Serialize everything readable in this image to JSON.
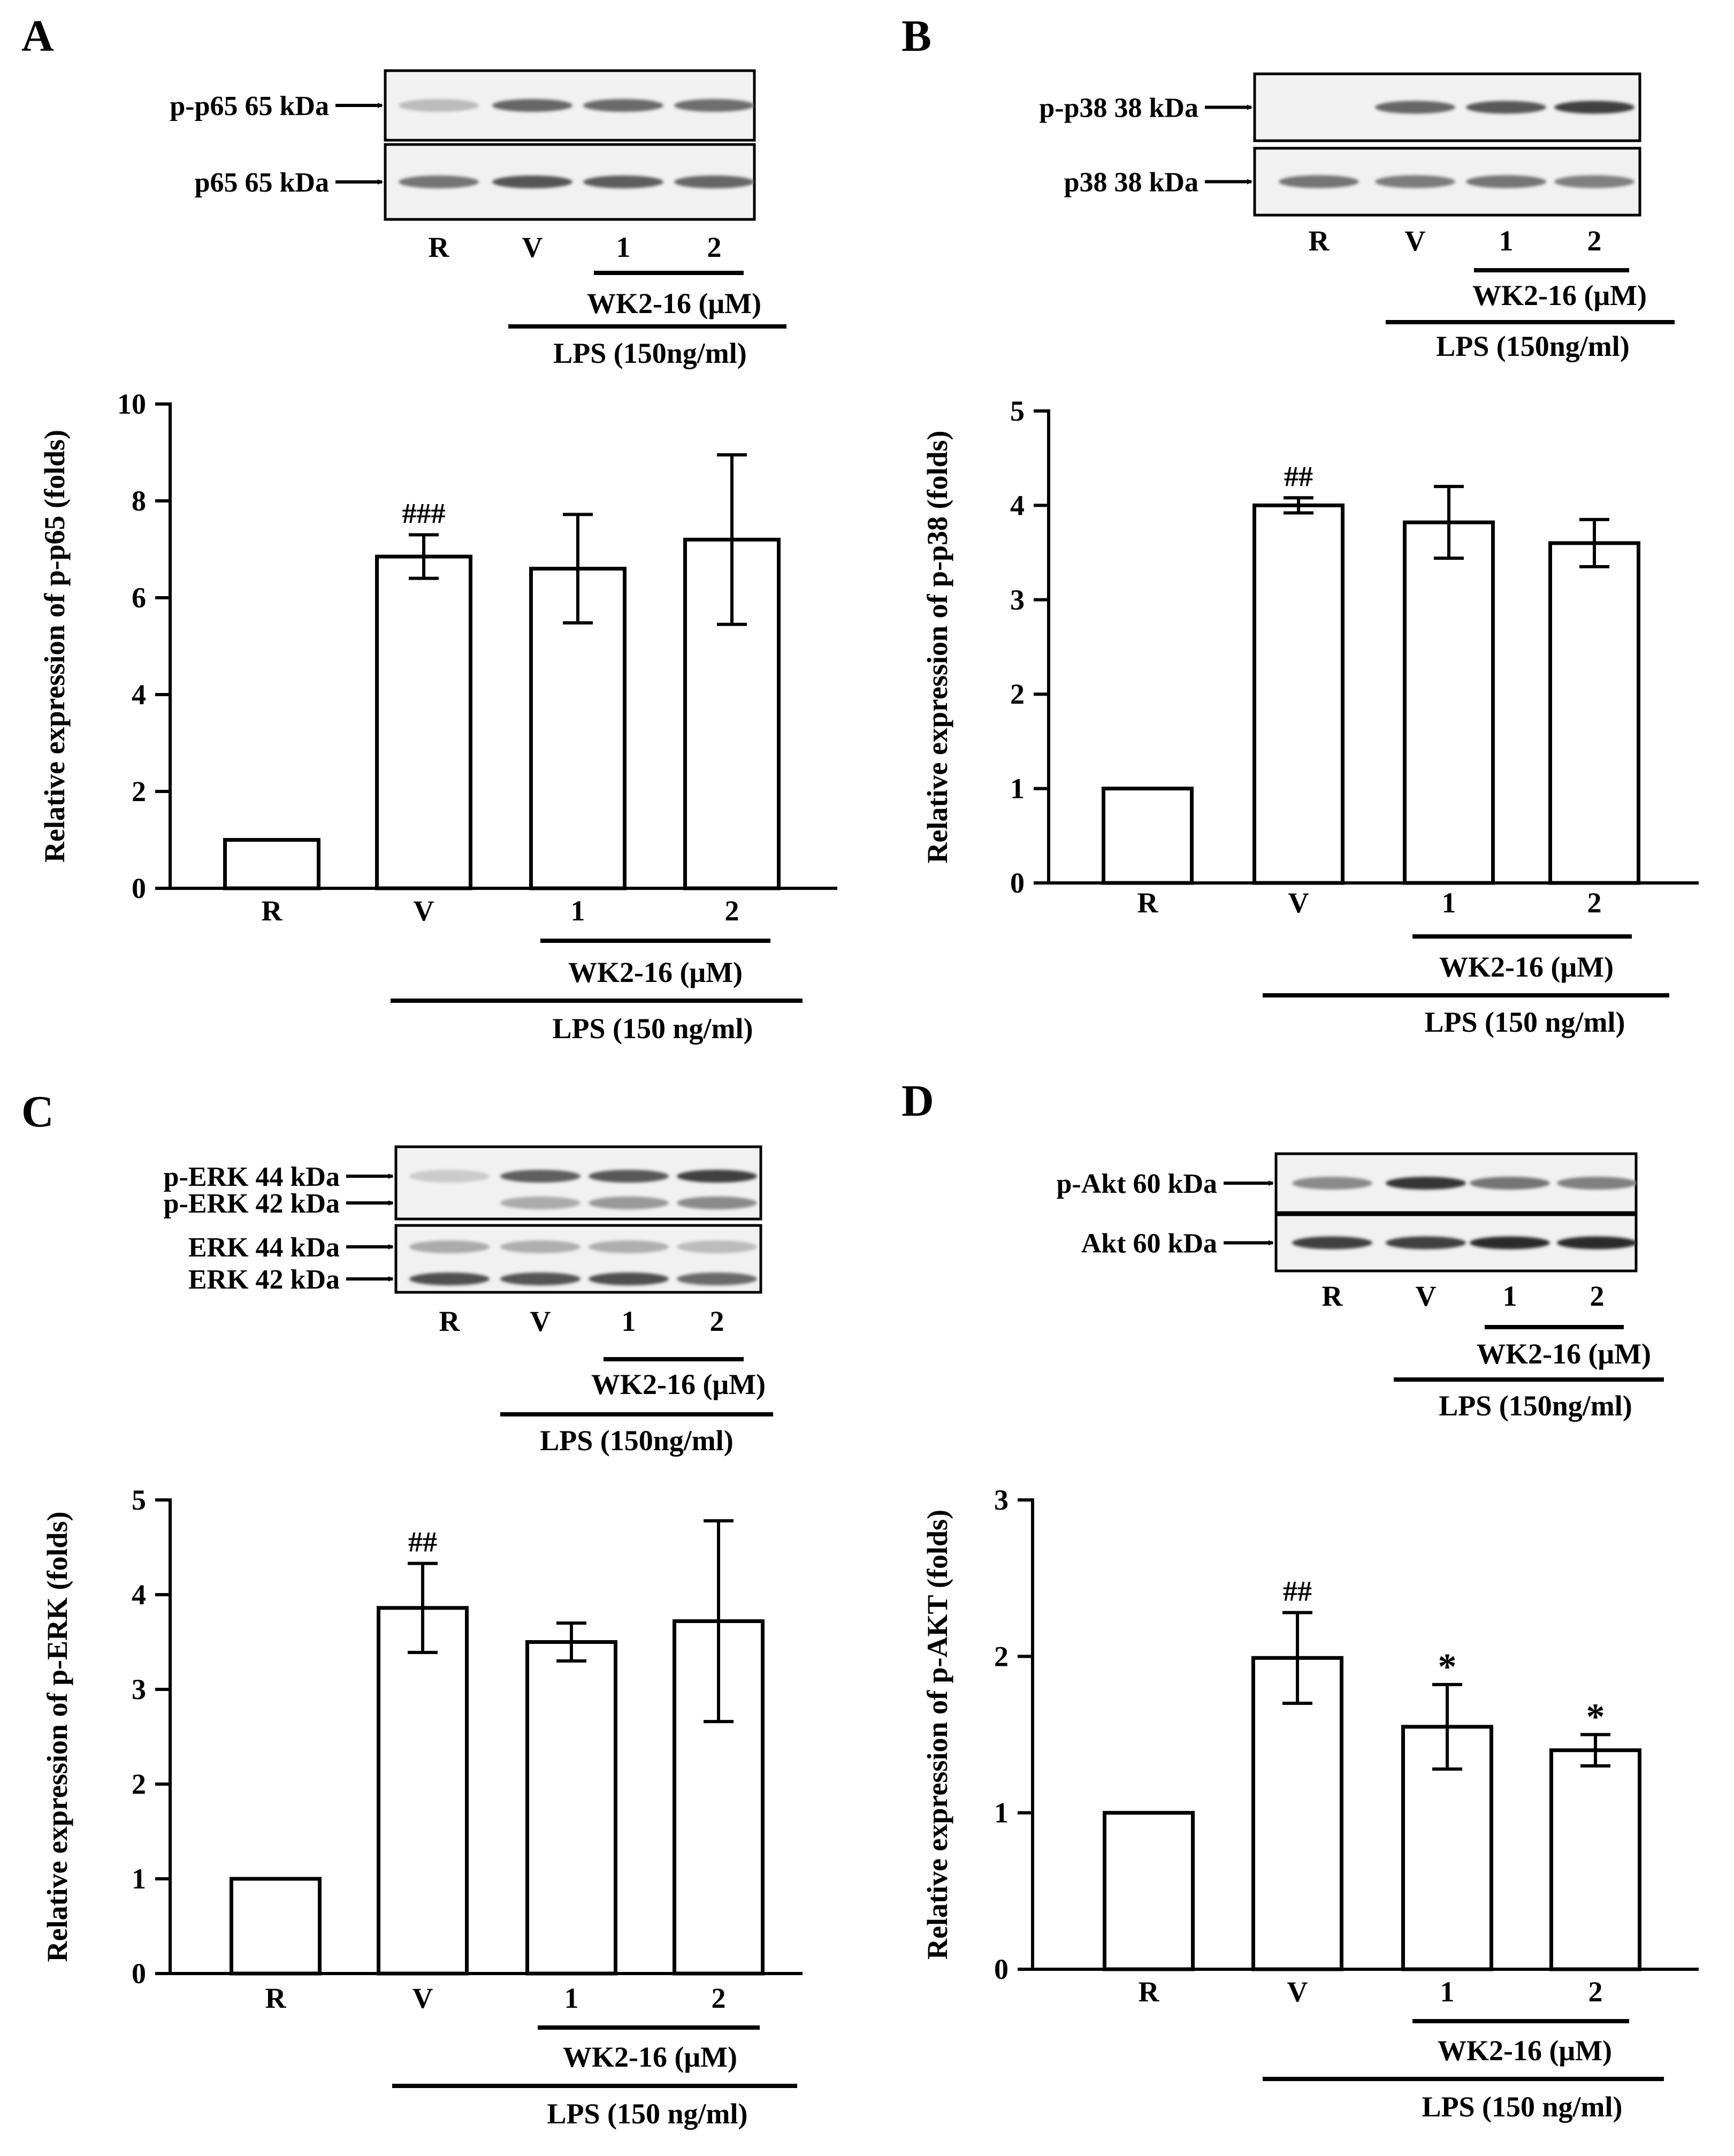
{
  "figure": {
    "panels": [
      {
        "letter": "A",
        "blot": {
          "rows": [
            {
              "label": "p-p65 65 kDa",
              "bands": [
                0.22,
                0.62,
                0.6,
                0.58
              ]
            },
            {
              "label": "p65 65 kDa",
              "bands": [
                0.55,
                0.7,
                0.66,
                0.62
              ]
            }
          ]
        },
        "lanes": [
          "R",
          "V",
          "1",
          "2"
        ],
        "group_label": "WK2-16 (μM)",
        "treatment_label": "LPS (150ng/ml)"
      },
      {
        "letter": "B",
        "blot": {
          "rows": [
            {
              "label": "p-p38 38 kDa",
              "bands": [
                0.0,
                0.62,
                0.68,
                0.8
              ]
            },
            {
              "label": "p38 38 kDa",
              "bands": [
                0.55,
                0.52,
                0.55,
                0.5
              ]
            }
          ]
        },
        "lanes": [
          "R",
          "V",
          "1",
          "2"
        ],
        "group_label": "WK2-16 (μM)",
        "treatment_label": "LPS (150ng/ml)"
      },
      {
        "letter": "C",
        "blot": {
          "rows": [
            {
              "label": "p-ERK 44 kDa",
              "bands": [
                0.15,
                0.65,
                0.68,
                0.8
              ]
            },
            {
              "label": "p-ERK 42 kDa",
              "bands": [
                0.0,
                0.3,
                0.38,
                0.45
              ]
            },
            {
              "label": "ERK 44 kDa",
              "bands": [
                0.3,
                0.28,
                0.28,
                0.22
              ]
            },
            {
              "label": "ERK 42 kDa",
              "bands": [
                0.72,
                0.7,
                0.72,
                0.6
              ]
            }
          ]
        },
        "lanes": [
          "R",
          "V",
          "1",
          "2"
        ],
        "group_label": "WK2-16 (μM)",
        "treatment_label": "LPS (150ng/ml)"
      },
      {
        "letter": "D",
        "blot": {
          "rows": [
            {
              "label": "p-Akt 60 kDa",
              "bands": [
                0.45,
                0.85,
                0.55,
                0.5
              ]
            },
            {
              "label": "Akt 60 kDa",
              "bands": [
                0.8,
                0.8,
                0.9,
                0.9
              ]
            }
          ]
        },
        "lanes": [
          "R",
          "V",
          "1",
          "2"
        ],
        "group_label": "WK2-16 (μM)",
        "treatment_label": "LPS (150ng/ml)"
      }
    ]
  },
  "chart_data": [
    {
      "panel": "A",
      "type": "bar",
      "categories": [
        "R",
        "V",
        "1",
        "2"
      ],
      "values": [
        1.0,
        6.85,
        6.6,
        7.2
      ],
      "errors": [
        0,
        0.45,
        1.12,
        1.75
      ],
      "annotations": [
        "",
        "###",
        "",
        ""
      ],
      "ylabel": "Relative expression of p-p65 (folds)",
      "ylim": [
        0,
        10
      ],
      "yticks": [
        0,
        2,
        4,
        6,
        8,
        10
      ],
      "group_label": "WK2-16 (μM)",
      "treatment_label": "LPS (150 ng/ml)"
    },
    {
      "panel": "B",
      "type": "bar",
      "categories": [
        "R",
        "V",
        "1",
        "2"
      ],
      "values": [
        1.0,
        4.0,
        3.82,
        3.6
      ],
      "errors": [
        0,
        0.08,
        0.38,
        0.25
      ],
      "annotations": [
        "",
        "##",
        "",
        ""
      ],
      "ylabel": "Relative expression of p-p38 (folds)",
      "ylim": [
        0,
        5
      ],
      "yticks": [
        0,
        1,
        2,
        3,
        4,
        5
      ],
      "group_label": "WK2-16 (μM)",
      "treatment_label": "LPS (150 ng/ml)"
    },
    {
      "panel": "C",
      "type": "bar",
      "categories": [
        "R",
        "V",
        "1",
        "2"
      ],
      "values": [
        1.0,
        3.86,
        3.5,
        3.72
      ],
      "errors": [
        0,
        0.47,
        0.2,
        1.06
      ],
      "annotations": [
        "",
        "##",
        "",
        ""
      ],
      "ylabel": "Relative expression of p-ERK (folds)",
      "ylim": [
        0,
        5
      ],
      "yticks": [
        0,
        1,
        2,
        3,
        4,
        5
      ],
      "group_label": "WK2-16 (μM)",
      "treatment_label": "LPS (150 ng/ml)"
    },
    {
      "panel": "D",
      "type": "bar",
      "categories": [
        "R",
        "V",
        "1",
        "2"
      ],
      "values": [
        1.0,
        1.99,
        1.55,
        1.4
      ],
      "errors": [
        0,
        0.29,
        0.27,
        0.1
      ],
      "annotations": [
        "",
        "##",
        "*",
        "*"
      ],
      "ylabel": "Relative expression of p-AKT (folds)",
      "ylim": [
        0,
        3
      ],
      "yticks": [
        0,
        1,
        2,
        3
      ],
      "group_label": "WK2-16 (μM)",
      "treatment_label": "LPS (150 ng/ml)"
    }
  ]
}
